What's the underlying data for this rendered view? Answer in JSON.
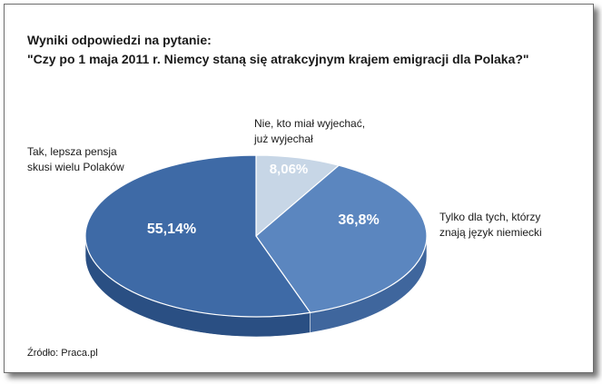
{
  "title": {
    "line1": "Wyniki odpowiedzi na pytanie:",
    "line2": "\"Czy po 1 maja 2011 r. Niemcy staną się atrakcyjnym krajem emigracji dla Polaka?\""
  },
  "source": "Źródło: Praca.pl",
  "colors": {
    "slice_large": "#3e6aa6",
    "slice_large_side": "#2a4f83",
    "slice_mid": "#5b86bf",
    "slice_mid_side": "#3f669d",
    "slice_small": "#c7d6e6",
    "slice_small_side": "#98aec7"
  },
  "chart_data": {
    "type": "pie",
    "style": "3d",
    "slices": [
      {
        "label_lines": [
          "Nie, kto miał wyjechać,",
          "już wyjechał"
        ],
        "value": 8.06,
        "display": "8,06%"
      },
      {
        "label_lines": [
          "Tylko dla tych, którzy",
          "znają język niemiecki"
        ],
        "value": 36.8,
        "display": "36,8%"
      },
      {
        "label_lines": [
          "Tak, lepsza pensja",
          "skusi wielu Polaków"
        ],
        "value": 55.14,
        "display": "55,14%"
      }
    ]
  }
}
